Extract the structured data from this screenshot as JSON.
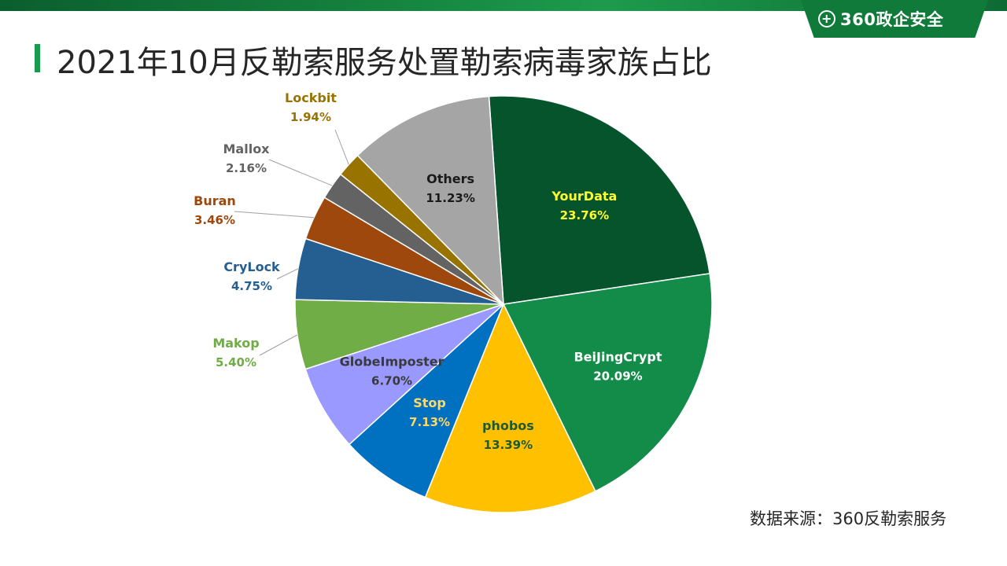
{
  "title": "2021年10月反勒索服务处置勒索病毒家族占比",
  "logo": {
    "text": "360政企安全",
    "icon": "plus-circle-icon"
  },
  "source": "数据来源：360反勒索服务",
  "colors": {
    "accent": "#1a9a4c",
    "band": "#0f7a3a"
  },
  "chart_data": {
    "type": "pie",
    "start_angle_deg": -4,
    "direction": "clockwise",
    "slices": [
      {
        "name": "YourData",
        "value": 23.76,
        "label": "23.76%",
        "color": "#06542b",
        "label_color": "#ffff33",
        "label_mode": "inside"
      },
      {
        "name": "BeiJingCrypt",
        "value": 20.09,
        "label": "20.09%",
        "color": "#138c4a",
        "label_color": "#ffffff",
        "label_mode": "inside"
      },
      {
        "name": "phobos",
        "value": 13.39,
        "label": "13.39%",
        "color": "#ffc000",
        "label_color": "#1f5a32",
        "label_mode": "inside"
      },
      {
        "name": "Stop",
        "value": 7.13,
        "label": "7.13%",
        "color": "#0070c0",
        "label_color": "#ffd966",
        "label_mode": "inside"
      },
      {
        "name": "GlobeImposter",
        "value": 6.7,
        "label": "6.70%",
        "color": "#9999ff",
        "label_color": "#3a3a3a",
        "label_mode": "inside"
      },
      {
        "name": "Makop",
        "value": 5.4,
        "label": "5.40%",
        "color": "#70ad47",
        "label_color": "#70ad47",
        "label_mode": "outside"
      },
      {
        "name": "CryLock",
        "value": 4.75,
        "label": "4.75%",
        "color": "#255e91",
        "label_color": "#255e91",
        "label_mode": "outside"
      },
      {
        "name": "Buran",
        "value": 3.46,
        "label": "3.46%",
        "color": "#9e480e",
        "label_color": "#9e480e",
        "label_mode": "outside"
      },
      {
        "name": "Mallox",
        "value": 2.16,
        "label": "2.16%",
        "color": "#636363",
        "label_color": "#636363",
        "label_mode": "outside"
      },
      {
        "name": "Lockbit",
        "value": 1.94,
        "label": "1.94%",
        "color": "#997300",
        "label_color": "#997300",
        "label_mode": "outside"
      },
      {
        "name": "Others",
        "value": 11.23,
        "label": "11.23%",
        "color": "#a5a5a5",
        "label_color": "#1a1a1a",
        "label_mode": "inside"
      }
    ]
  }
}
